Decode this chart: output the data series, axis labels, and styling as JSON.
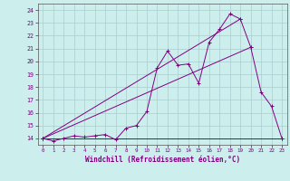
{
  "xlabel": "Windchill (Refroidissement éolien,°C)",
  "bg_color": "#cceeed",
  "line_color": "#800080",
  "grid_color": "#aacccc",
  "xlim": [
    -0.5,
    23.5
  ],
  "ylim": [
    13.5,
    24.5
  ],
  "xticks": [
    0,
    1,
    2,
    3,
    4,
    5,
    6,
    7,
    8,
    9,
    10,
    11,
    12,
    13,
    14,
    15,
    16,
    17,
    18,
    19,
    20,
    21,
    22,
    23
  ],
  "yticks": [
    14,
    15,
    16,
    17,
    18,
    19,
    20,
    21,
    22,
    23,
    24
  ],
  "series": [
    [
      0,
      14.0
    ],
    [
      1,
      13.8
    ],
    [
      2,
      14.0
    ],
    [
      3,
      14.2
    ],
    [
      4,
      14.1
    ],
    [
      5,
      14.2
    ],
    [
      6,
      14.3
    ],
    [
      7,
      13.9
    ],
    [
      8,
      14.8
    ],
    [
      9,
      15.0
    ],
    [
      10,
      16.1
    ],
    [
      11,
      19.5
    ],
    [
      12,
      20.8
    ],
    [
      13,
      19.7
    ],
    [
      14,
      19.8
    ],
    [
      15,
      18.3
    ],
    [
      16,
      21.5
    ],
    [
      17,
      22.5
    ],
    [
      18,
      23.7
    ],
    [
      19,
      23.3
    ],
    [
      20,
      21.1
    ],
    [
      21,
      17.6
    ],
    [
      22,
      16.5
    ],
    [
      23,
      14.0
    ]
  ],
  "line2": [
    [
      0,
      14.0
    ],
    [
      19,
      23.3
    ]
  ],
  "line3": [
    [
      0,
      14.0
    ],
    [
      20,
      21.1
    ]
  ],
  "line4": [
    [
      0,
      14.0
    ],
    [
      23,
      14.0
    ]
  ]
}
